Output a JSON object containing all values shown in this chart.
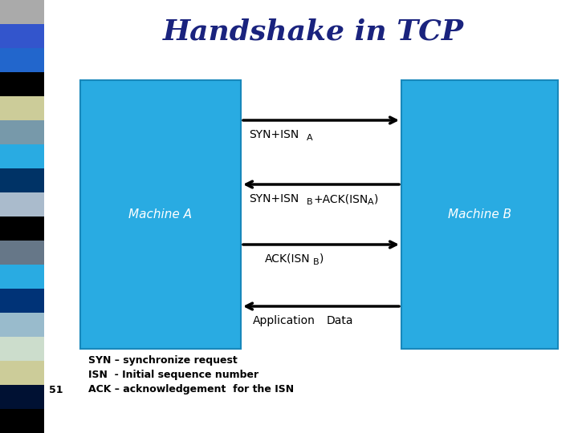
{
  "title": "Handshake in TCP",
  "title_color": "#1a237e",
  "title_fontsize": 26,
  "bg_color": "#ffffff",
  "box_color": "#29ABE2",
  "box_edge_color": "#1888bb",
  "machine_a_label": "Machine A",
  "machine_b_label": "Machine B",
  "sidebar_colors": [
    "#aaaaaa",
    "#3355cc",
    "#2266cc",
    "#000000",
    "#cccc99",
    "#7799aa",
    "#29ABE2",
    "#003366",
    "#aabbcc",
    "#000000",
    "#556677",
    "#29ABE2",
    "#003377",
    "#88bbcc",
    "#ccddcc",
    "#cccc99",
    "#001133",
    "#000000"
  ],
  "footnote_lines": [
    "SYN – synchronize request",
    "ISN  - Initial sequence number",
    "ACK – acknowledgement  for the ISN"
  ],
  "slide_number": "51"
}
